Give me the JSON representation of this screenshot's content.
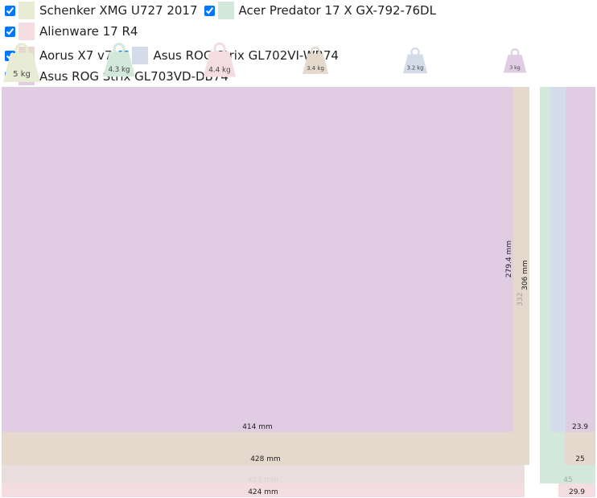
{
  "laptops": [
    {
      "name": "Schenker XMG U727 2017",
      "color": "#e8ecd4",
      "weight": "5 kg"
    },
    {
      "name": "Acer Predator 17 X GX-792-76DL",
      "color": "#d2e8da",
      "weight": "4.3 kg"
    },
    {
      "name": "Alienware 17 R4",
      "color": "#f4dde0",
      "weight": "4.4 kg"
    },
    {
      "name": "Aorus X7 v7",
      "color": "#e5d8cc",
      "weight": "3.4 kg"
    },
    {
      "name": "Asus ROG Strix GL702VI-WB74",
      "color": "#d3dce8",
      "weight": "3.2 kg"
    },
    {
      "name": "Asus ROG Strix GL703VD-DB74",
      "color": "#e0cde3",
      "weight": "3 kg"
    }
  ],
  "front_view": {
    "alienware_width": "424 mm",
    "acer_width": "423 mm",
    "aorus_width": "428 mm",
    "asus_width": "414 mm",
    "asus_depth": "279.4 mm",
    "aorus_depth": "306 mm",
    "alienware_depth": "332"
  },
  "side_view": {
    "asus_height": "23.9",
    "aorus_height": "25",
    "acer_height": "45",
    "alienware_height": "29.9"
  }
}
